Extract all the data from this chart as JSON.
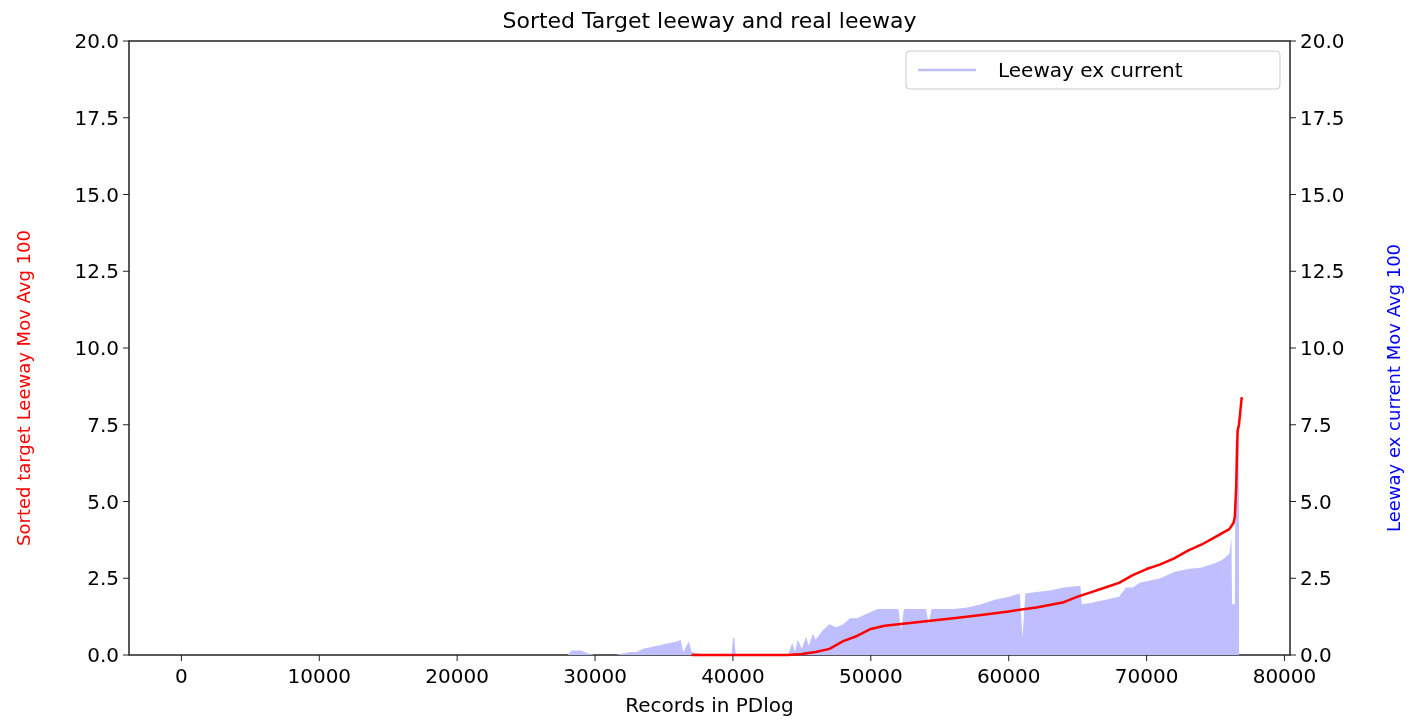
{
  "chart_data": {
    "type": "line",
    "title": "Sorted Target leeway and real leeway",
    "xlabel": "Records in PDlog",
    "ylabel": "Sorted target Leeway Mov Avg 100",
    "y2label": "Leeway ex current Mov Avg 100",
    "xlim": [
      -3800,
      80400
    ],
    "xticks": [
      0,
      10000,
      20000,
      30000,
      40000,
      50000,
      60000,
      70000,
      80000
    ],
    "ylim": [
      0,
      20
    ],
    "yticks": [
      {
        "value": 0,
        "label": "0.0"
      },
      {
        "value": 2.5,
        "label": "2.5"
      },
      {
        "value": 5,
        "label": "5.0"
      },
      {
        "value": 7.5,
        "label": "7.5"
      },
      {
        "value": 10,
        "label": "10.0"
      },
      {
        "value": 12.5,
        "label": "12.5"
      },
      {
        "value": 15,
        "label": "15.0"
      },
      {
        "value": 17.5,
        "label": "17.5"
      },
      {
        "value": 20,
        "label": "20.0"
      }
    ],
    "y2lim": [
      0,
      20
    ],
    "y2ticks": [
      {
        "value": 0,
        "label": "0.0"
      },
      {
        "value": 2.5,
        "label": "2.5"
      },
      {
        "value": 5,
        "label": "5.0"
      },
      {
        "value": 7.5,
        "label": "7.5"
      },
      {
        "value": 10,
        "label": "10.0"
      },
      {
        "value": 12.5,
        "label": "12.5"
      },
      {
        "value": 15,
        "label": "15.0"
      },
      {
        "value": 17.5,
        "label": "17.5"
      },
      {
        "value": 20,
        "label": "20.0"
      }
    ],
    "legend": "top right",
    "grid": false,
    "series": [
      {
        "name": "Leeway ex current",
        "type": "area",
        "axis": "y2",
        "color": "#bfbfff",
        "x": [
          28000,
          28300,
          29000,
          29500,
          30000,
          31500,
          32000,
          32500,
          33000,
          33500,
          34000,
          34500,
          35000,
          35500,
          36000,
          36200,
          36400,
          36800,
          37000,
          37500,
          38000,
          39900,
          40000,
          40100,
          40200,
          44000,
          44300,
          44500,
          44700,
          45000,
          45300,
          45500,
          45800,
          46000,
          46500,
          47000,
          47500,
          48000,
          48500,
          49000,
          49500,
          50000,
          50500,
          51000,
          52000,
          52200,
          52400,
          53000,
          54000,
          54200,
          54400,
          55000,
          56000,
          57000,
          58000,
          59000,
          60000,
          60800,
          61000,
          61200,
          62000,
          63000,
          64000,
          65000,
          65200,
          65300,
          66000,
          67000,
          68000,
          68500,
          69000,
          69500,
          70000,
          71000,
          72000,
          73000,
          74000,
          75000,
          75500,
          76000,
          76150,
          76200,
          76400,
          76450,
          76650,
          76700
        ],
        "values": [
          0,
          0.15,
          0.15,
          0.05,
          0,
          0,
          0.05,
          0.1,
          0.1,
          0.2,
          0.25,
          0.3,
          0.35,
          0.4,
          0.45,
          0.5,
          0.1,
          0.45,
          0.1,
          0.05,
          0,
          0,
          0.55,
          0.55,
          0,
          0,
          0.4,
          0.1,
          0.5,
          0.2,
          0.6,
          0.3,
          0.7,
          0.5,
          0.8,
          1.0,
          0.9,
          1.0,
          1.2,
          1.2,
          1.3,
          1.4,
          1.5,
          1.5,
          1.5,
          0.8,
          1.5,
          1.5,
          1.5,
          1.0,
          1.5,
          1.5,
          1.5,
          1.55,
          1.65,
          1.8,
          1.9,
          2.0,
          0.55,
          2.0,
          2.05,
          2.1,
          2.2,
          2.25,
          2.25,
          1.65,
          1.7,
          1.8,
          1.9,
          2.2,
          2.2,
          2.35,
          2.4,
          2.5,
          2.7,
          2.8,
          2.85,
          3.0,
          3.1,
          3.3,
          3.8,
          1.65,
          1.65,
          7.0,
          7.0,
          5.1
        ]
      },
      {
        "color": "#ff0000",
        "axis": "y",
        "x": [
          37000,
          40000,
          44000,
          45000,
          46000,
          47000,
          48000,
          49000,
          50000,
          51000,
          52000,
          54000,
          56000,
          58000,
          60000,
          62000,
          64000,
          65000,
          66000,
          67000,
          68000,
          69000,
          70000,
          71000,
          72000,
          73000,
          74000,
          75000,
          76000,
          76300,
          76400,
          76500,
          76600,
          76700,
          76900
        ],
        "values": [
          0,
          0,
          0,
          0.03,
          0.1,
          0.2,
          0.45,
          0.62,
          0.85,
          0.95,
          1.0,
          1.1,
          1.2,
          1.3,
          1.42,
          1.55,
          1.72,
          1.9,
          2.05,
          2.2,
          2.35,
          2.6,
          2.8,
          2.95,
          3.15,
          3.4,
          3.6,
          3.85,
          4.1,
          4.3,
          4.5,
          5.5,
          7.3,
          7.5,
          8.4
        ]
      }
    ]
  }
}
